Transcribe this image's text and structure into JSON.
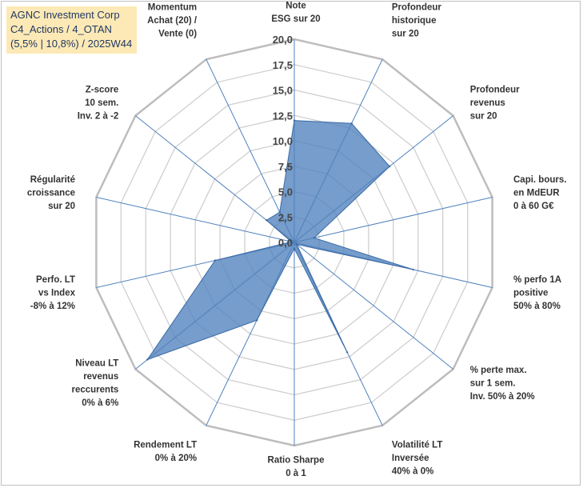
{
  "title": {
    "line1": "AGNC Investment Corp",
    "line2": "C4_Actions / 4_OTAN",
    "line3": "(5,5% | 10,8%) / 2025W44"
  },
  "chart_data": {
    "type": "radar",
    "title": "AGNC Investment Corp C4_Actions / 4_OTAN (5,5% | 10,8%) / 2025W44",
    "rlim": [
      0,
      20
    ],
    "ticks": [
      "0,0",
      "2,5",
      "5,0",
      "7,5",
      "10,0",
      "12,5",
      "15,0",
      "17,5",
      "20,0"
    ],
    "tick_values": [
      0,
      2.5,
      5,
      7.5,
      10,
      12.5,
      15,
      17.5,
      20
    ],
    "grid": true,
    "series": [
      {
        "name": "AGNC Investment Corp",
        "color": "#4f81bd",
        "values": [
          12,
          13,
          12,
          2,
          12,
          0.3,
          12,
          0.6,
          8.5,
          18.5,
          8,
          0.3,
          3.5,
          3.3
        ]
      }
    ],
    "axes": [
      [
        "Note",
        "ESG sur 20"
      ],
      [
        "Profondeur",
        "historique",
        "sur 20"
      ],
      [
        "Profondeur",
        "revenus",
        "sur 20"
      ],
      [
        "Capi. bours.",
        "en MdEUR",
        "0 à 60 G€"
      ],
      [
        "% perfo 1A",
        "positive",
        "50% à 80%"
      ],
      [
        "% perte max.",
        "sur 1 sem.",
        "Inv. 50% à 20%"
      ],
      [
        "Volatilité LT",
        "Inversée",
        "40% à 0%"
      ],
      [
        "Ratio Sharpe",
        "0 à 1"
      ],
      [
        "Rendement LT",
        "0% à 20%"
      ],
      [
        "Niveau LT",
        "revenus",
        "reccurents",
        "0% à 6%"
      ],
      [
        "Perfo. LT",
        "vs Index",
        "-8% à 12%"
      ],
      [
        "Régularité",
        "croissance",
        "sur 20"
      ],
      [
        "Z-score",
        "10 sem.",
        "Inv. 2 à -2"
      ],
      [
        "Momentum",
        "Achat (20) /",
        "Vente (0)"
      ]
    ]
  }
}
